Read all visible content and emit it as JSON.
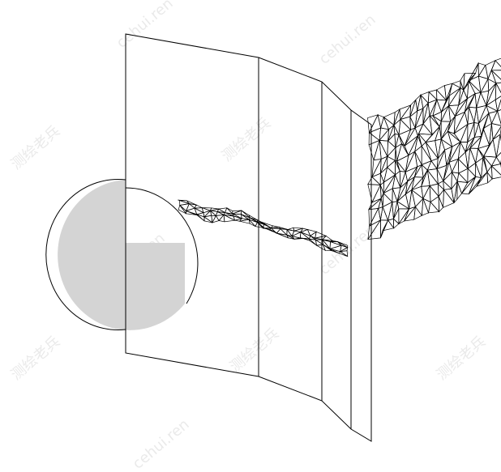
{
  "watermarks": [
    {
      "text": "cehui.ren"
    },
    {
      "text": "测绘老兵"
    },
    {
      "text": "cehui.ren"
    },
    {
      "text": "测绘老兵"
    },
    {
      "text": "cehui.ren"
    },
    {
      "text": "测绘老兵"
    },
    {
      "text": "cehui.ren"
    },
    {
      "text": "测绘老兵"
    },
    {
      "text": "cehui.ren"
    },
    {
      "text": "测绘老兵"
    }
  ],
  "colors": {
    "background": "#ffffff",
    "line": "#000000",
    "disc_fill": "#d4d4d4",
    "watermark": "#d9d9d9"
  }
}
